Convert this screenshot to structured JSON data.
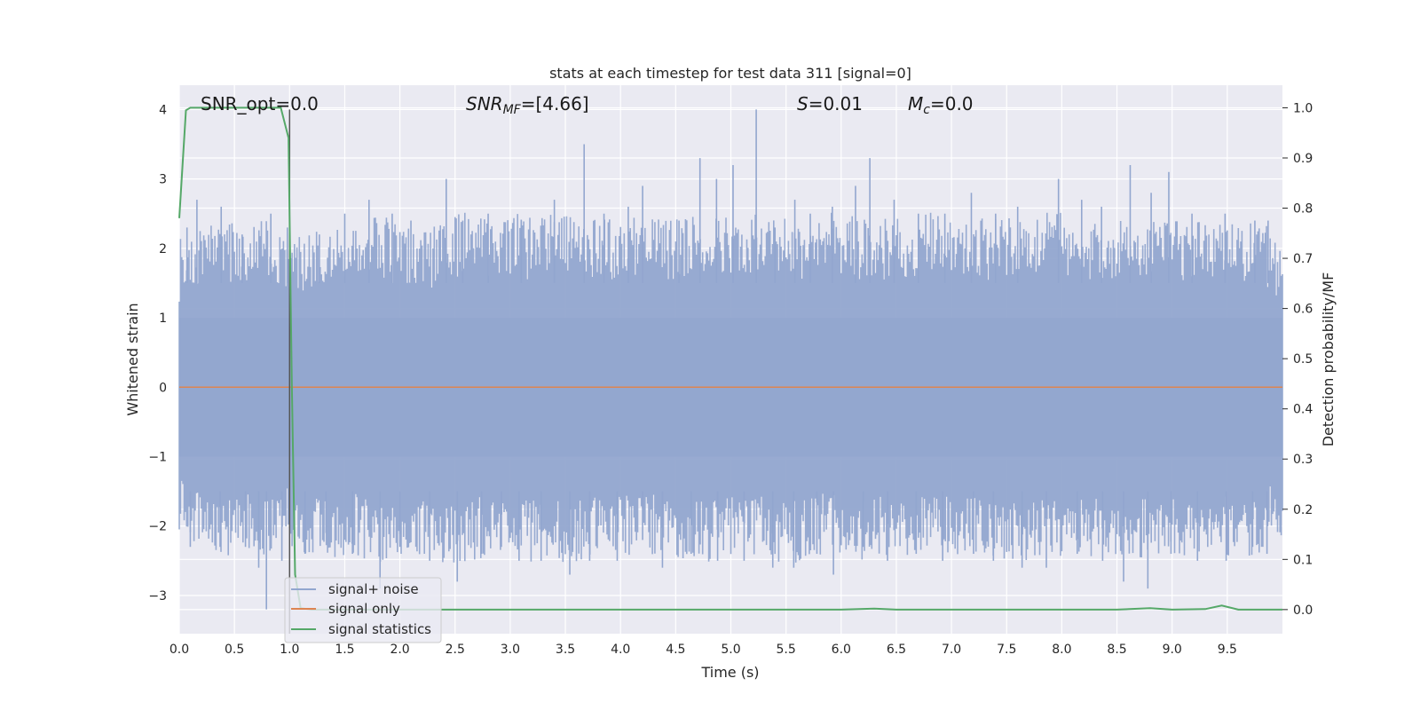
{
  "chart_data": {
    "type": "line",
    "title": "stats at each timestep for test data 311 [signal=0]",
    "xlabel": "Time (s)",
    "ylabel": "Whitened strain",
    "y2label": "Detection probability/MF",
    "xlim": [
      0.0,
      10.0
    ],
    "ylim": [
      -3.55,
      4.35
    ],
    "y2lim": [
      -0.048,
      1.045
    ],
    "xticks": [
      "0.0",
      "0.5",
      "1.0",
      "1.5",
      "2.0",
      "2.5",
      "3.0",
      "3.5",
      "4.0",
      "4.5",
      "5.0",
      "5.5",
      "6.0",
      "6.5",
      "7.0",
      "7.5",
      "8.0",
      "8.5",
      "9.0",
      "9.5"
    ],
    "yticks": [
      "−3",
      "−2",
      "−1",
      "0",
      "1",
      "2",
      "3",
      "4"
    ],
    "y2ticks": [
      "0.0",
      "0.1",
      "0.2",
      "0.3",
      "0.4",
      "0.5",
      "0.6",
      "0.7",
      "0.8",
      "0.9",
      "1.0"
    ],
    "grid": true,
    "legend_position": "lower-left",
    "annotations": {
      "snr_opt": "SNR_opt=0.0",
      "snr_mf_sym": "SNR",
      "snr_mf_sub": "MF",
      "snr_mf_val": "=[4.66]",
      "s_sym": "S",
      "s_val": "=0.01",
      "mc_sym": "M",
      "mc_sub": "c",
      "mc_val": "=0.0"
    },
    "vline_x": 1.0,
    "series": [
      {
        "name": "signal+ noise",
        "color": "#92a6cf",
        "axis": "left",
        "envelope_upper": [
          [
            0.0,
            1.5
          ],
          [
            0.2,
            1.7
          ],
          [
            0.4,
            1.8
          ],
          [
            0.6,
            1.7
          ],
          [
            0.8,
            1.8
          ],
          [
            1.0,
            1.6
          ],
          [
            1.2,
            1.7
          ],
          [
            1.4,
            1.8
          ],
          [
            1.6,
            1.7
          ],
          [
            1.8,
            1.9
          ],
          [
            2.0,
            1.7
          ],
          [
            2.2,
            1.6
          ],
          [
            2.4,
            1.8
          ],
          [
            2.6,
            1.9
          ],
          [
            2.8,
            1.8
          ],
          [
            3.0,
            1.9
          ],
          [
            3.2,
            1.8
          ],
          [
            3.4,
            1.9
          ],
          [
            3.6,
            1.9
          ],
          [
            3.8,
            1.8
          ],
          [
            4.0,
            1.8
          ],
          [
            4.2,
            1.9
          ],
          [
            4.4,
            1.8
          ],
          [
            4.6,
            1.8
          ],
          [
            4.8,
            1.9
          ],
          [
            5.0,
            1.8
          ],
          [
            5.2,
            1.9
          ],
          [
            5.4,
            1.8
          ],
          [
            5.6,
            1.8
          ],
          [
            5.8,
            1.9
          ],
          [
            6.0,
            1.9
          ],
          [
            6.2,
            1.8
          ],
          [
            6.4,
            1.8
          ],
          [
            6.6,
            1.8
          ],
          [
            6.8,
            1.9
          ],
          [
            7.0,
            1.8
          ],
          [
            7.2,
            1.8
          ],
          [
            7.4,
            1.8
          ],
          [
            7.6,
            1.9
          ],
          [
            7.8,
            1.9
          ],
          [
            8.0,
            1.9
          ],
          [
            8.2,
            1.8
          ],
          [
            8.4,
            1.8
          ],
          [
            8.6,
            1.9
          ],
          [
            8.8,
            1.8
          ],
          [
            9.0,
            1.8
          ],
          [
            9.2,
            1.8
          ],
          [
            9.4,
            1.8
          ],
          [
            9.6,
            1.7
          ],
          [
            9.8,
            1.8
          ],
          [
            10.0,
            1.5
          ]
        ],
        "envelope_lower": [
          [
            0.0,
            -1.5
          ],
          [
            0.2,
            -1.8
          ],
          [
            0.4,
            -1.8
          ],
          [
            0.6,
            -1.8
          ],
          [
            0.8,
            -1.8
          ],
          [
            1.0,
            -1.7
          ],
          [
            1.2,
            -1.8
          ],
          [
            1.4,
            -1.9
          ],
          [
            1.6,
            -1.8
          ],
          [
            1.8,
            -1.9
          ],
          [
            2.0,
            -1.8
          ],
          [
            2.2,
            -1.8
          ],
          [
            2.4,
            -1.9
          ],
          [
            2.6,
            -1.9
          ],
          [
            2.8,
            -1.8
          ],
          [
            3.0,
            -1.8
          ],
          [
            3.2,
            -1.9
          ],
          [
            3.4,
            -1.9
          ],
          [
            3.6,
            -1.9
          ],
          [
            3.8,
            -1.8
          ],
          [
            4.0,
            -1.8
          ],
          [
            4.2,
            -1.8
          ],
          [
            4.4,
            -1.8
          ],
          [
            4.6,
            -1.9
          ],
          [
            4.8,
            -1.9
          ],
          [
            5.0,
            -1.8
          ],
          [
            5.2,
            -1.8
          ],
          [
            5.4,
            -1.9
          ],
          [
            5.6,
            -1.9
          ],
          [
            5.8,
            -1.8
          ],
          [
            6.0,
            -1.8
          ],
          [
            6.2,
            -1.9
          ],
          [
            6.4,
            -1.8
          ],
          [
            6.6,
            -1.8
          ],
          [
            6.8,
            -1.8
          ],
          [
            7.0,
            -1.8
          ],
          [
            7.2,
            -1.8
          ],
          [
            7.4,
            -1.9
          ],
          [
            7.6,
            -1.9
          ],
          [
            7.8,
            -1.8
          ],
          [
            8.0,
            -1.8
          ],
          [
            8.2,
            -1.8
          ],
          [
            8.4,
            -1.9
          ],
          [
            8.6,
            -1.9
          ],
          [
            8.8,
            -1.8
          ],
          [
            9.0,
            -1.8
          ],
          [
            9.2,
            -1.8
          ],
          [
            9.4,
            -1.8
          ],
          [
            9.6,
            -1.8
          ],
          [
            9.8,
            -1.8
          ],
          [
            10.0,
            -1.5
          ]
        ],
        "peaks": [
          [
            0.07,
            2.3
          ],
          [
            0.16,
            2.7
          ],
          [
            0.38,
            2.6
          ],
          [
            0.57,
            2.2
          ],
          [
            0.83,
            2.5
          ],
          [
            0.98,
            2.3
          ],
          [
            1.27,
            2.2
          ],
          [
            1.5,
            2.5
          ],
          [
            1.72,
            2.7
          ],
          [
            1.93,
            2.5
          ],
          [
            2.1,
            2.4
          ],
          [
            2.42,
            3.0
          ],
          [
            2.57,
            2.4
          ],
          [
            2.8,
            2.5
          ],
          [
            3.1,
            2.4
          ],
          [
            3.4,
            2.7
          ],
          [
            3.67,
            3.5
          ],
          [
            3.85,
            2.5
          ],
          [
            4.07,
            2.6
          ],
          [
            4.2,
            2.9
          ],
          [
            4.53,
            2.4
          ],
          [
            4.72,
            3.3
          ],
          [
            4.87,
            3.0
          ],
          [
            5.02,
            3.2
          ],
          [
            5.23,
            4.0
          ],
          [
            5.4,
            2.3
          ],
          [
            5.58,
            2.7
          ],
          [
            5.72,
            2.5
          ],
          [
            5.92,
            2.6
          ],
          [
            6.13,
            2.9
          ],
          [
            6.26,
            3.3
          ],
          [
            6.48,
            2.7
          ],
          [
            6.7,
            2.5
          ],
          [
            6.94,
            2.5
          ],
          [
            7.18,
            2.8
          ],
          [
            7.4,
            2.5
          ],
          [
            7.6,
            2.6
          ],
          [
            7.97,
            3.0
          ],
          [
            8.18,
            2.7
          ],
          [
            8.36,
            2.6
          ],
          [
            8.62,
            3.2
          ],
          [
            8.81,
            2.8
          ],
          [
            8.97,
            3.1
          ],
          [
            9.18,
            2.5
          ],
          [
            9.48,
            2.5
          ],
          [
            9.75,
            2.4
          ],
          [
            9.87,
            2.4
          ]
        ],
        "troughs": [
          [
            0.1,
            -2.3
          ],
          [
            0.37,
            -2.3
          ],
          [
            0.6,
            -2.3
          ],
          [
            0.72,
            -2.6
          ],
          [
            0.79,
            -3.2
          ],
          [
            0.93,
            -2.5
          ],
          [
            1.14,
            -2.4
          ],
          [
            1.33,
            -2.1
          ],
          [
            1.57,
            -2.4
          ],
          [
            1.82,
            -2.9
          ],
          [
            2.0,
            -2.3
          ],
          [
            2.27,
            -2.5
          ],
          [
            2.52,
            -2.8
          ],
          [
            2.74,
            -2.4
          ],
          [
            2.92,
            -2.3
          ],
          [
            3.08,
            -2.5
          ],
          [
            3.28,
            -2.5
          ],
          [
            3.54,
            -2.7
          ],
          [
            3.72,
            -2.5
          ],
          [
            3.97,
            -2.5
          ],
          [
            4.2,
            -2.2
          ],
          [
            4.38,
            -2.6
          ],
          [
            4.64,
            -2.4
          ],
          [
            4.88,
            -2.5
          ],
          [
            5.12,
            -2.5
          ],
          [
            5.38,
            -2.6
          ],
          [
            5.57,
            -2.6
          ],
          [
            5.78,
            -2.4
          ],
          [
            5.93,
            -2.7
          ],
          [
            6.2,
            -2.3
          ],
          [
            6.42,
            -2.5
          ],
          [
            6.68,
            -2.4
          ],
          [
            6.92,
            -2.5
          ],
          [
            7.2,
            -2.4
          ],
          [
            7.38,
            -2.5
          ],
          [
            7.64,
            -2.6
          ],
          [
            7.86,
            -2.6
          ],
          [
            8.14,
            -2.4
          ],
          [
            8.37,
            -2.5
          ],
          [
            8.56,
            -2.8
          ],
          [
            8.78,
            -2.9
          ],
          [
            8.99,
            -2.4
          ],
          [
            9.23,
            -2.5
          ],
          [
            9.49,
            -2.5
          ],
          [
            9.73,
            -2.3
          ],
          [
            9.86,
            -2.4
          ]
        ]
      },
      {
        "name": "signal only",
        "color": "#dd8452",
        "axis": "left",
        "x": [
          0.0,
          10.0
        ],
        "y": [
          0.0,
          0.0
        ]
      },
      {
        "name": "signal statistics",
        "color": "#55a868",
        "axis": "right",
        "x": [
          0.0,
          0.06,
          0.1,
          0.2,
          0.5,
          0.8,
          0.92,
          0.99,
          1.02,
          1.05,
          1.1,
          1.2,
          1.5,
          2.0,
          3.0,
          4.0,
          5.0,
          6.0,
          6.3,
          6.5,
          7.0,
          8.0,
          8.5,
          8.8,
          9.0,
          9.3,
          9.45,
          9.6,
          10.0
        ],
        "y": [
          0.78,
          0.995,
          1.0,
          1.0,
          1.0,
          1.0,
          1.0,
          0.94,
          0.45,
          0.07,
          0.003,
          0.0,
          0.0,
          0.0,
          0.0,
          0.0,
          0.0,
          0.0,
          0.002,
          0.0,
          0.0,
          0.0,
          0.0,
          0.003,
          0.0,
          0.001,
          0.008,
          0.0,
          0.0
        ]
      }
    ]
  }
}
